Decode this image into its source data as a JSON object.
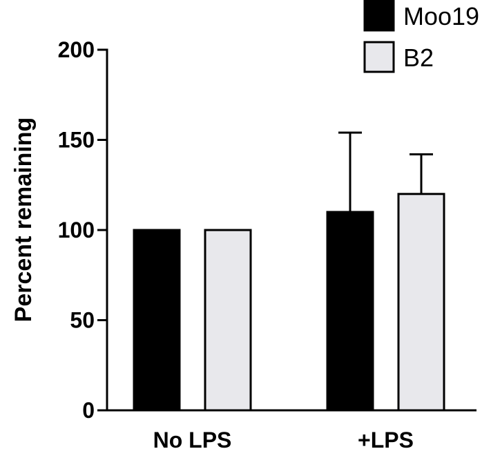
{
  "chart_data": {
    "type": "bar",
    "categories": [
      "No LPS",
      "+LPS"
    ],
    "series": [
      {
        "name": "Moo19",
        "values": [
          100,
          110
        ],
        "error": [
          0,
          44
        ],
        "color": "#000000"
      },
      {
        "name": "B2",
        "values": [
          100,
          120
        ],
        "error": [
          0,
          22
        ],
        "color": "#e8e8ec"
      }
    ],
    "ylabel": "Percent remaining",
    "xlabel": "",
    "ylim": [
      0,
      200
    ],
    "yticks": [
      0,
      50,
      100,
      150,
      200
    ],
    "grid": false,
    "legend_position": "top-right"
  }
}
